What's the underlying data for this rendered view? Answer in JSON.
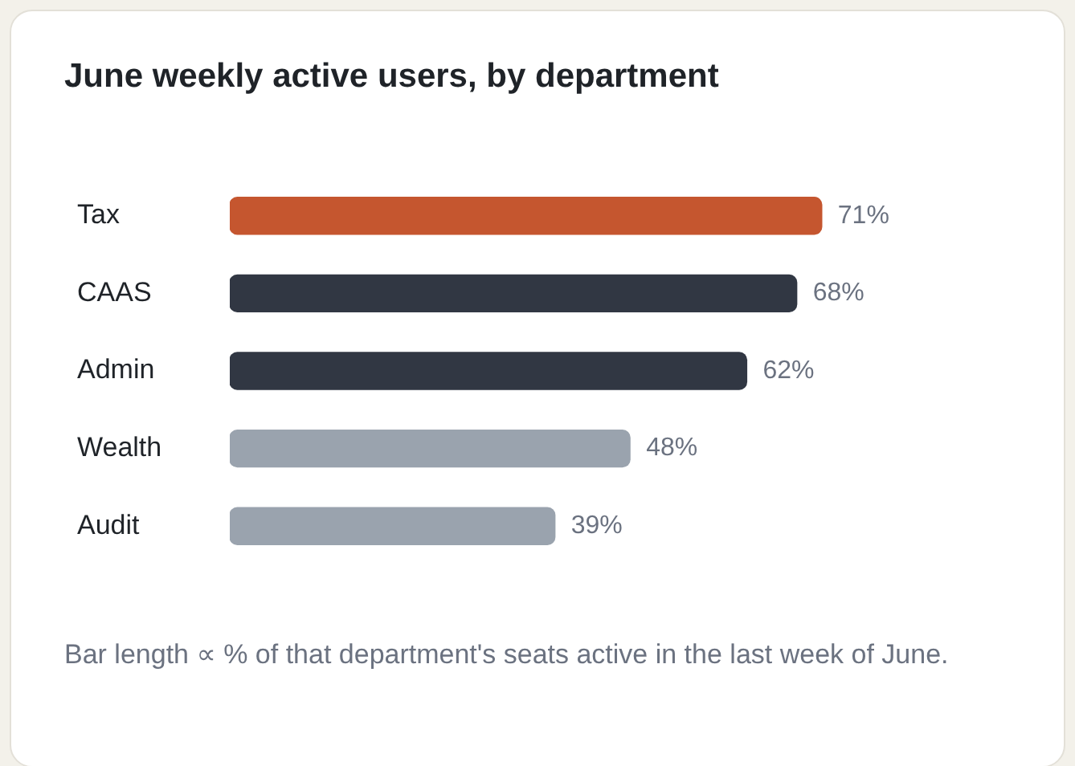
{
  "chart_data": {
    "type": "bar",
    "orientation": "horizontal",
    "title": "June weekly active users, by department",
    "categories": [
      "Tax",
      "CAAS",
      "Admin",
      "Wealth",
      "Audit"
    ],
    "values": [
      71,
      68,
      62,
      48,
      39
    ],
    "colors": [
      "#c5562f",
      "#313743",
      "#313743",
      "#9aa3ae",
      "#9aa3ae"
    ],
    "value_labels": [
      "71%",
      "68%",
      "62%",
      "48%",
      "39%"
    ],
    "legend": false,
    "annotations": [
      "Bar length ∝ % of that department's seats active in the last week of June."
    ]
  }
}
